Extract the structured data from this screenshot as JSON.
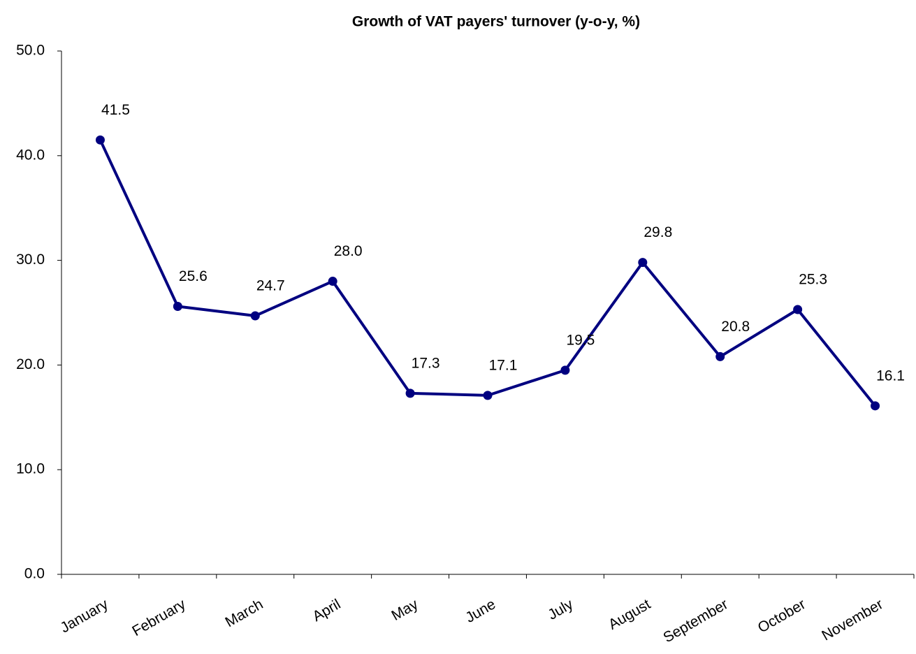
{
  "chart_data": {
    "type": "line",
    "title": "Growth of VAT payers' turnover (y-o-y, %)",
    "categories": [
      "January",
      "February",
      "March",
      "April",
      "May",
      "June",
      "July",
      "August",
      "September",
      "October",
      "November"
    ],
    "series": [
      {
        "name": null,
        "color": "#000080",
        "values": [
          41.5,
          25.6,
          24.7,
          28.0,
          17.3,
          17.1,
          19.5,
          29.8,
          20.8,
          25.3,
          16.1
        ],
        "value_labels": [
          "41.5",
          "25.6",
          "24.7",
          "28.0",
          "17.3",
          "17.1",
          "19.5",
          "29.8",
          "20.8",
          "25.3",
          "16.1"
        ]
      }
    ],
    "ylim": [
      0,
      50
    ],
    "yticks": [
      {
        "value": 0,
        "label": "0.0"
      },
      {
        "value": 10,
        "label": "10.0"
      },
      {
        "value": 20,
        "label": "20.0"
      },
      {
        "value": 30,
        "label": "30.0"
      },
      {
        "value": 40,
        "label": "40.0"
      },
      {
        "value": 50,
        "label": "50.0"
      }
    ],
    "grid": false
  }
}
